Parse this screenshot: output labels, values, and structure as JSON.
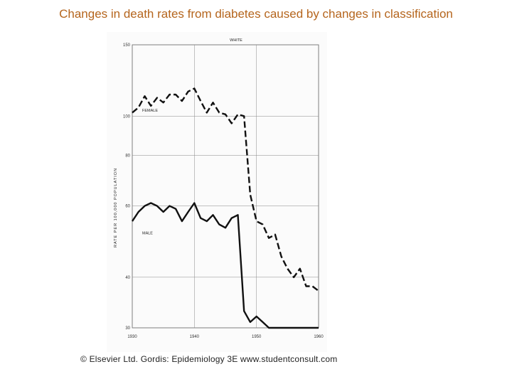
{
  "slide": {
    "title": "Changes in death rates from diabetes caused by changes in classification",
    "copyright": "© Elsevier Ltd. Gordis: Epidemiology 3E www.studentconsult.com",
    "title_color": "#b5651d"
  },
  "chart_data": {
    "type": "line",
    "title": "WHITE",
    "ylabel": "RATE PER 100,000 POPULATION",
    "xlabel": "",
    "y_scale": "log",
    "xlim": [
      1930,
      1960
    ],
    "ylim": [
      30,
      150
    ],
    "x_ticks": [
      "1930",
      "1940",
      "1950",
      "1960"
    ],
    "y_ticks": [
      {
        "value": 30,
        "label": "30"
      },
      {
        "value": 40,
        "label": "40"
      },
      {
        "value": 60,
        "label": "60"
      },
      {
        "value": 80,
        "label": "80"
      },
      {
        "value": 100,
        "label": "100"
      },
      {
        "value": 150,
        "label": "150"
      }
    ],
    "series": [
      {
        "name": "FEMALE",
        "style": "dashed",
        "x": [
          1930,
          1931,
          1932,
          1933,
          1934,
          1935,
          1936,
          1937,
          1938,
          1939,
          1940,
          1941,
          1942,
          1943,
          1944,
          1945,
          1946,
          1947,
          1948,
          1949,
          1950,
          1951,
          1952,
          1953,
          1954,
          1955,
          1956,
          1957,
          1958,
          1959,
          1960
        ],
        "values": [
          102,
          105,
          112,
          106,
          111,
          108,
          113,
          113,
          109,
          115,
          117,
          109,
          102,
          108,
          102,
          101,
          96,
          101,
          100,
          64,
          55,
          54,
          50,
          51,
          45,
          42,
          40,
          42,
          38,
          38,
          37
        ]
      },
      {
        "name": "MALE",
        "style": "solid",
        "x": [
          1930,
          1931,
          1932,
          1933,
          1934,
          1935,
          1936,
          1937,
          1938,
          1939,
          1940,
          1941,
          1942,
          1943,
          1944,
          1945,
          1946,
          1947,
          1948,
          1949,
          1950,
          1951,
          1952,
          1953,
          1954,
          1955,
          1956,
          1957,
          1958,
          1959,
          1960
        ],
        "values": [
          55,
          58,
          60,
          61,
          60,
          58,
          60,
          59,
          55,
          58,
          61,
          56,
          55,
          57,
          54,
          53,
          56,
          57,
          33,
          31,
          32,
          31,
          30,
          30,
          30,
          30,
          30,
          30,
          30,
          30,
          30
        ]
      }
    ],
    "grid": true
  }
}
